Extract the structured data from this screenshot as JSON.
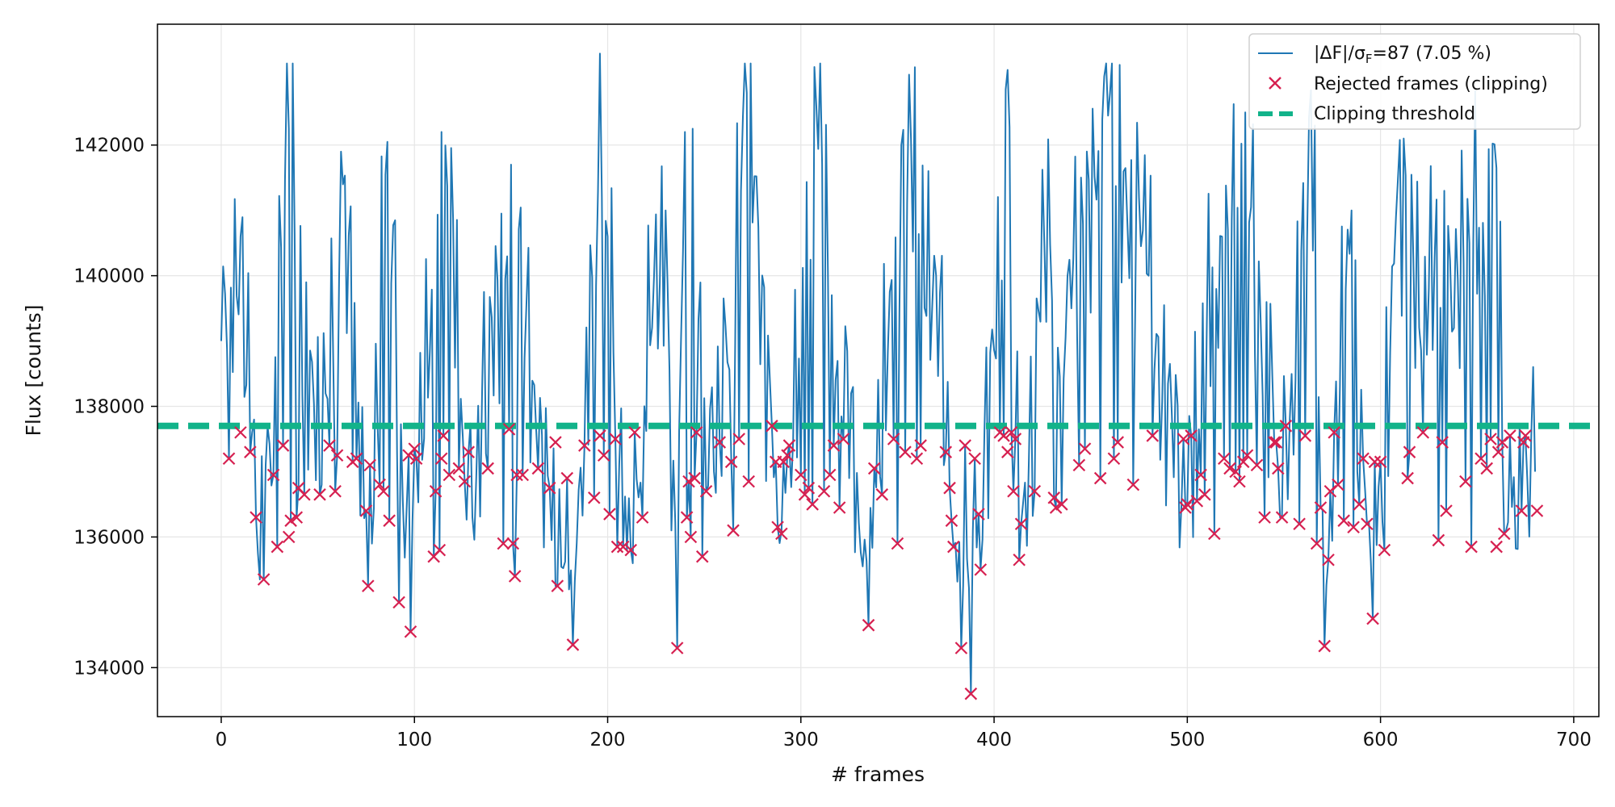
{
  "chart_data": {
    "type": "line",
    "title": "",
    "xlabel": "# frames",
    "ylabel": "Flux [counts]",
    "xlim": [
      -33,
      713
    ],
    "ylim": [
      133250,
      143850
    ],
    "x_ticks": [
      0,
      100,
      200,
      300,
      400,
      500,
      600,
      700
    ],
    "y_ticks": [
      134000,
      136000,
      138000,
      140000,
      142000
    ],
    "x_tick_labels": [
      "0",
      "100",
      "200",
      "300",
      "400",
      "500",
      "600",
      "700"
    ],
    "y_tick_labels": [
      "134000",
      "136000",
      "138000",
      "140000",
      "142000"
    ],
    "grid": true,
    "legend_position": "top-right",
    "legend": [
      {
        "key": "flux",
        "label": "|ΔF|/σF=87 (7.05 %)",
        "symbol": "line"
      },
      {
        "key": "rejected",
        "label": "Rejected frames (clipping)",
        "symbol": "x-marker"
      },
      {
        "key": "threshold",
        "label": "Clipping threshold",
        "symbol": "dashed-line"
      }
    ],
    "legend_parts": {
      "abs_delta_F": "|ΔF|/σ",
      "sigma_subscript": "F",
      "value_text": "=87 (7.05 %)"
    },
    "colors": {
      "flux": "#1f77b4",
      "rejected": "#d62050",
      "threshold": "#12b38a",
      "grid": "#e6e6e6",
      "axes": "#000000"
    },
    "threshold": 137700,
    "series": [
      {
        "name": "Flux",
        "kind": "line",
        "anchors": [
          [
            0,
            139000
          ],
          [
            10,
            140600
          ],
          [
            20,
            135350
          ],
          [
            23,
            137100
          ],
          [
            35,
            142250
          ],
          [
            52,
            136800
          ],
          [
            62,
            141900
          ],
          [
            76,
            135280
          ],
          [
            86,
            142050
          ],
          [
            98,
            134550
          ],
          [
            114,
            142200
          ],
          [
            130,
            136300
          ],
          [
            150,
            141700
          ],
          [
            173,
            135250
          ],
          [
            182,
            134350
          ],
          [
            195,
            141300
          ],
          [
            196,
            143400
          ],
          [
            210,
            135800
          ],
          [
            230,
            141000
          ],
          [
            236,
            134300
          ],
          [
            240,
            142200
          ],
          [
            255,
            137000
          ],
          [
            272,
            142800
          ],
          [
            290,
            136100
          ],
          [
            308,
            142600
          ],
          [
            335,
            134650
          ],
          [
            352,
            142000
          ],
          [
            370,
            140000
          ],
          [
            383,
            134300
          ],
          [
            388,
            133600
          ],
          [
            407,
            143150
          ],
          [
            413,
            135650
          ],
          [
            426,
            140500
          ],
          [
            440,
            139500
          ],
          [
            457,
            143050
          ],
          [
            480,
            140000
          ],
          [
            497,
            136500
          ],
          [
            510,
            139000
          ],
          [
            530,
            142500
          ],
          [
            548,
            136300
          ],
          [
            566,
            142300
          ],
          [
            571,
            134330
          ],
          [
            585,
            141000
          ],
          [
            596,
            134750
          ],
          [
            608,
            140900
          ],
          [
            625,
            139800
          ],
          [
            646,
            140500
          ],
          [
            660,
            141650
          ],
          [
            665,
            136100
          ],
          [
            680,
            137000
          ]
        ]
      },
      {
        "name": "Rejected frames (clipping)",
        "kind": "markers",
        "points": [
          [
            4,
            137200
          ],
          [
            10,
            137600
          ],
          [
            15,
            137300
          ],
          [
            18,
            136300
          ],
          [
            22,
            135350
          ],
          [
            27,
            136950
          ],
          [
            29,
            135850
          ],
          [
            32,
            137400
          ],
          [
            35,
            136000
          ],
          [
            36,
            136250
          ],
          [
            39,
            136300
          ],
          [
            40,
            136750
          ],
          [
            43,
            136650
          ],
          [
            51,
            136650
          ],
          [
            56,
            137400
          ],
          [
            59,
            136700
          ],
          [
            60,
            137250
          ],
          [
            68,
            137150
          ],
          [
            70,
            137200
          ],
          [
            75,
            136400
          ],
          [
            76,
            135250
          ],
          [
            77,
            137100
          ],
          [
            82,
            136800
          ],
          [
            84,
            136700
          ],
          [
            87,
            136250
          ],
          [
            92,
            135000
          ],
          [
            97,
            137250
          ],
          [
            98,
            134550
          ],
          [
            100,
            137350
          ],
          [
            101,
            137200
          ],
          [
            110,
            135700
          ],
          [
            111,
            136700
          ],
          [
            113,
            135800
          ],
          [
            114,
            137200
          ],
          [
            115,
            137550
          ],
          [
            118,
            136950
          ],
          [
            123,
            137050
          ],
          [
            126,
            136850
          ],
          [
            128,
            137300
          ],
          [
            138,
            137050
          ],
          [
            146,
            135900
          ],
          [
            149,
            137650
          ],
          [
            151,
            135900
          ],
          [
            152,
            135400
          ],
          [
            153,
            136950
          ],
          [
            156,
            136950
          ],
          [
            164,
            137050
          ],
          [
            170,
            136750
          ],
          [
            173,
            137450
          ],
          [
            174,
            135250
          ],
          [
            179,
            136900
          ],
          [
            182,
            134350
          ],
          [
            188,
            137400
          ],
          [
            193,
            136600
          ],
          [
            196,
            137550
          ],
          [
            198,
            137250
          ],
          [
            201,
            136350
          ],
          [
            204,
            137500
          ],
          [
            205,
            135850
          ],
          [
            208,
            135850
          ],
          [
            212,
            135800
          ],
          [
            214,
            137600
          ],
          [
            218,
            136300
          ],
          [
            236,
            134300
          ],
          [
            241,
            136300
          ],
          [
            242,
            136850
          ],
          [
            243,
            136000
          ],
          [
            245,
            136900
          ],
          [
            246,
            137600
          ],
          [
            249,
            135700
          ],
          [
            251,
            136700
          ],
          [
            258,
            137450
          ],
          [
            264,
            137150
          ],
          [
            265,
            136100
          ],
          [
            268,
            137500
          ],
          [
            273,
            136850
          ],
          [
            285,
            137700
          ],
          [
            287,
            137150
          ],
          [
            288,
            136150
          ],
          [
            290,
            136050
          ],
          [
            291,
            137150
          ],
          [
            293,
            137250
          ],
          [
            294,
            137400
          ],
          [
            300,
            136950
          ],
          [
            302,
            136650
          ],
          [
            304,
            136750
          ],
          [
            306,
            136500
          ],
          [
            312,
            136700
          ],
          [
            315,
            136950
          ],
          [
            317,
            137400
          ],
          [
            320,
            136450
          ],
          [
            322,
            137500
          ],
          [
            335,
            134650
          ],
          [
            338,
            137050
          ],
          [
            342,
            136650
          ],
          [
            348,
            137500
          ],
          [
            350,
            135900
          ],
          [
            354,
            137300
          ],
          [
            360,
            137200
          ],
          [
            362,
            137400
          ],
          [
            375,
            137300
          ],
          [
            377,
            136750
          ],
          [
            378,
            136250
          ],
          [
            379,
            135850
          ],
          [
            383,
            134300
          ],
          [
            385,
            137400
          ],
          [
            388,
            133600
          ],
          [
            390,
            137200
          ],
          [
            392,
            136350
          ],
          [
            393,
            135500
          ],
          [
            403,
            137600
          ],
          [
            405,
            137550
          ],
          [
            407,
            137300
          ],
          [
            409,
            137600
          ],
          [
            410,
            136700
          ],
          [
            411,
            137500
          ],
          [
            413,
            135650
          ],
          [
            414,
            136200
          ],
          [
            421,
            136700
          ],
          [
            431,
            136600
          ],
          [
            432,
            136450
          ],
          [
            435,
            136500
          ],
          [
            444,
            137100
          ],
          [
            447,
            137350
          ],
          [
            455,
            136900
          ],
          [
            462,
            137200
          ],
          [
            464,
            137450
          ],
          [
            472,
            136800
          ],
          [
            482,
            137550
          ],
          [
            498,
            137500
          ],
          [
            499,
            136450
          ],
          [
            500,
            136500
          ],
          [
            502,
            137550
          ],
          [
            505,
            136550
          ],
          [
            507,
            136950
          ],
          [
            509,
            136650
          ],
          [
            514,
            136050
          ],
          [
            519,
            137200
          ],
          [
            522,
            137050
          ],
          [
            525,
            137000
          ],
          [
            527,
            136850
          ],
          [
            529,
            137150
          ],
          [
            531,
            137250
          ],
          [
            536,
            137100
          ],
          [
            540,
            136300
          ],
          [
            545,
            137450
          ],
          [
            546,
            137450
          ],
          [
            547,
            137050
          ],
          [
            549,
            136300
          ],
          [
            551,
            137700
          ],
          [
            558,
            136200
          ],
          [
            561,
            137550
          ],
          [
            567,
            135900
          ],
          [
            569,
            136450
          ],
          [
            571,
            134330
          ],
          [
            573,
            135650
          ],
          [
            574,
            136700
          ],
          [
            576,
            137600
          ],
          [
            578,
            136800
          ],
          [
            581,
            136250
          ],
          [
            586,
            136150
          ],
          [
            589,
            136500
          ],
          [
            591,
            137200
          ],
          [
            593,
            136200
          ],
          [
            596,
            134750
          ],
          [
            597,
            137150
          ],
          [
            600,
            137150
          ],
          [
            602,
            135800
          ],
          [
            614,
            136900
          ],
          [
            615,
            137300
          ],
          [
            622,
            137600
          ],
          [
            630,
            135950
          ],
          [
            632,
            137450
          ],
          [
            634,
            136400
          ],
          [
            644,
            136850
          ],
          [
            647,
            135850
          ],
          [
            652,
            137200
          ],
          [
            655,
            137050
          ],
          [
            657,
            137500
          ],
          [
            660,
            135850
          ],
          [
            661,
            137300
          ],
          [
            663,
            137450
          ],
          [
            664,
            136050
          ],
          [
            667,
            137550
          ],
          [
            673,
            136400
          ],
          [
            674,
            137450
          ],
          [
            675,
            137550
          ],
          [
            681,
            136400
          ]
        ]
      }
    ]
  }
}
